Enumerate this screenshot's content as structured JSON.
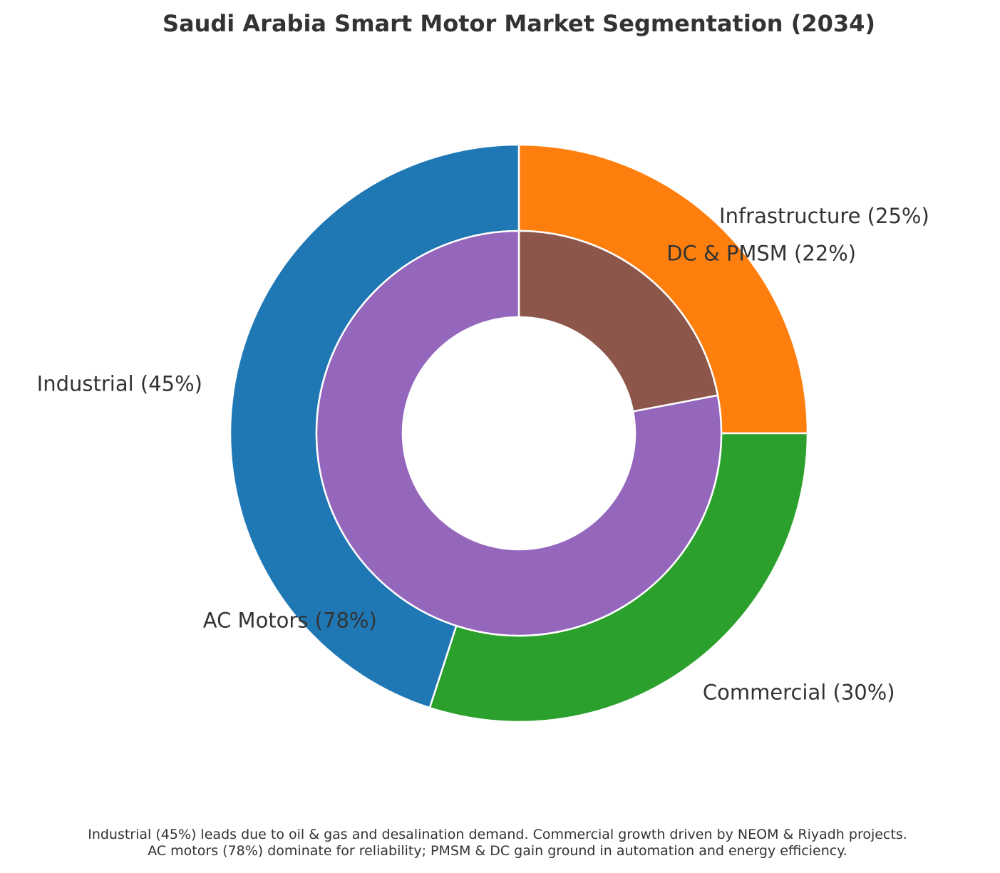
{
  "chart_data": {
    "type": "pie",
    "variant": "nested-donut",
    "title": "Saudi Arabia Smart Motor Market Segmentation (2034)",
    "outer_ring": {
      "name": "End-use segment",
      "start_angle_deg": 90,
      "direction": "clockwise",
      "slices": [
        {
          "label": "Infrastructure (25%)",
          "category": "Infrastructure",
          "value": 25,
          "color": "#ff7f0e"
        },
        {
          "label": "Commercial (30%)",
          "category": "Commercial",
          "value": 30,
          "color": "#2ca02c"
        },
        {
          "label": "Industrial (45%)",
          "category": "Industrial",
          "value": 45,
          "color": "#1f77b4"
        }
      ]
    },
    "inner_ring": {
      "name": "Motor type",
      "start_angle_deg": 90,
      "direction": "clockwise",
      "slices": [
        {
          "label": "DC & PMSM (22%)",
          "category": "DC & PMSM",
          "value": 22,
          "color": "#8c564b"
        },
        {
          "label": "AC Motors (78%)",
          "category": "AC Motors",
          "value": 78,
          "color": "#9467bd"
        }
      ]
    },
    "legend": "none",
    "annotations": [
      "Industrial (45%) leads due to oil & gas and desalination demand. Commercial growth driven by NEOM & Riyadh projects.",
      "AC motors (78%) dominate for reliability; PMSM & DC gain ground in automation and energy efficiency."
    ]
  }
}
